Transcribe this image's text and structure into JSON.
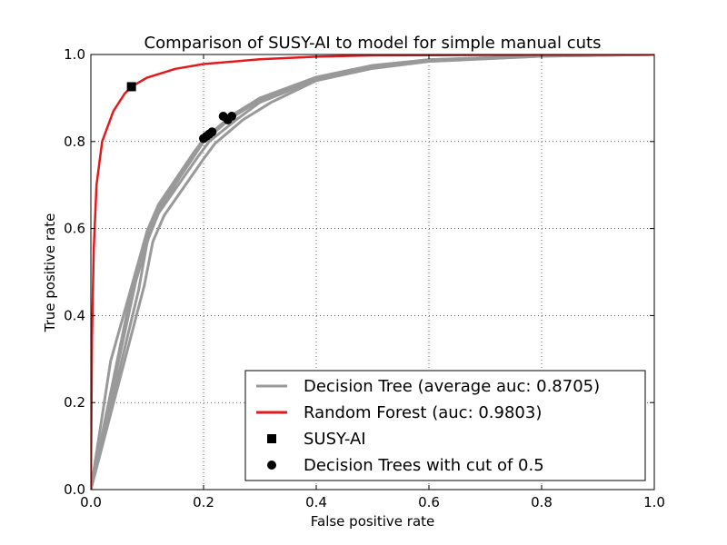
{
  "chart_data": {
    "type": "line",
    "title": "Comparison of SUSY-AI to model for simple manual cuts",
    "xlabel": "False positive rate",
    "ylabel": "True positive rate",
    "xlim": [
      0.0,
      1.0
    ],
    "ylim": [
      0.0,
      1.0
    ],
    "xticks": [
      "0.0",
      "0.2",
      "0.4",
      "0.6",
      "0.8",
      "1.0"
    ],
    "yticks": [
      "0.0",
      "0.2",
      "0.4",
      "0.6",
      "0.8",
      "1.0"
    ],
    "grid": true,
    "legend_position": "lower-right",
    "colors": {
      "decision_tree": "#999999",
      "random_forest": "#e31a1c",
      "marker": "#000000"
    },
    "series": [
      {
        "name": "Decision Tree  (average auc: 0.8705)",
        "kind": "line-band",
        "curves": [
          [
            [
              0,
              0
            ],
            [
              0.035,
              0.295
            ],
            [
              0.1,
              0.595
            ],
            [
              0.12,
              0.655
            ],
            [
              0.18,
              0.77
            ],
            [
              0.2,
              0.805
            ],
            [
              0.25,
              0.86
            ],
            [
              0.3,
              0.9
            ],
            [
              0.4,
              0.948
            ],
            [
              0.5,
              0.975
            ],
            [
              0.6,
              0.988
            ],
            [
              0.8,
              0.997
            ],
            [
              1,
              1
            ]
          ],
          [
            [
              0,
              0
            ],
            [
              0.075,
              0.475
            ],
            [
              0.1,
              0.585
            ],
            [
              0.12,
              0.645
            ],
            [
              0.18,
              0.76
            ],
            [
              0.2,
              0.8
            ],
            [
              0.25,
              0.855
            ],
            [
              0.3,
              0.895
            ],
            [
              0.4,
              0.945
            ],
            [
              0.5,
              0.973
            ],
            [
              0.6,
              0.987
            ],
            [
              0.8,
              0.997
            ],
            [
              1,
              1
            ]
          ],
          [
            [
              0,
              0
            ],
            [
              0.085,
              0.46
            ],
            [
              0.1,
              0.57
            ],
            [
              0.12,
              0.635
            ],
            [
              0.19,
              0.765
            ],
            [
              0.21,
              0.8
            ],
            [
              0.26,
              0.852
            ],
            [
              0.3,
              0.89
            ],
            [
              0.4,
              0.942
            ],
            [
              0.5,
              0.97
            ],
            [
              0.6,
              0.985
            ],
            [
              0.8,
              0.996
            ],
            [
              1,
              1
            ]
          ],
          [
            [
              0,
              0
            ],
            [
              0.095,
              0.47
            ],
            [
              0.11,
              0.57
            ],
            [
              0.13,
              0.63
            ],
            [
              0.2,
              0.76
            ],
            [
              0.22,
              0.795
            ],
            [
              0.27,
              0.85
            ],
            [
              0.32,
              0.89
            ],
            [
              0.4,
              0.94
            ],
            [
              0.5,
              0.968
            ],
            [
              0.6,
              0.984
            ],
            [
              0.8,
              0.996
            ],
            [
              1,
              1
            ]
          ],
          [
            [
              0,
              0
            ],
            [
              0.08,
              0.48
            ],
            [
              0.105,
              0.59
            ],
            [
              0.125,
              0.65
            ],
            [
              0.185,
              0.775
            ],
            [
              0.205,
              0.81
            ],
            [
              0.255,
              0.862
            ],
            [
              0.31,
              0.902
            ],
            [
              0.4,
              0.947
            ],
            [
              0.5,
              0.974
            ],
            [
              0.6,
              0.988
            ],
            [
              0.8,
              0.997
            ],
            [
              1,
              1
            ]
          ]
        ]
      },
      {
        "name": "Random Forest  (auc: 0.9803)",
        "kind": "line",
        "points": [
          [
            0,
            0
          ],
          [
            0.002,
            0.35
          ],
          [
            0.005,
            0.55
          ],
          [
            0.01,
            0.7
          ],
          [
            0.02,
            0.8
          ],
          [
            0.04,
            0.87
          ],
          [
            0.06,
            0.91
          ],
          [
            0.072,
            0.926
          ],
          [
            0.1,
            0.947
          ],
          [
            0.15,
            0.967
          ],
          [
            0.2,
            0.978
          ],
          [
            0.3,
            0.989
          ],
          [
            0.4,
            0.995
          ],
          [
            0.5,
            0.998
          ],
          [
            0.7,
            0.999
          ],
          [
            1,
            1
          ]
        ]
      },
      {
        "name": "SUSY-AI",
        "kind": "marker-square",
        "points": [
          [
            0.072,
            0.926
          ]
        ]
      },
      {
        "name": "Decision Trees with cut of 0.5",
        "kind": "marker-circle",
        "points": [
          [
            0.2,
            0.807
          ],
          [
            0.205,
            0.812
          ],
          [
            0.21,
            0.817
          ],
          [
            0.215,
            0.822
          ],
          [
            0.235,
            0.858
          ],
          [
            0.243,
            0.85
          ],
          [
            0.25,
            0.858
          ]
        ]
      }
    ]
  }
}
